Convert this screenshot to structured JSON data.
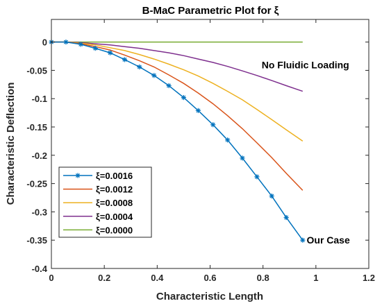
{
  "chart_data": {
    "type": "line",
    "title": "B-MaC Parametric Plot for ξ",
    "xlabel": "Characteristic Length",
    "ylabel": "Characteristic Deflection",
    "xlim": [
      0,
      1.2
    ],
    "ylim": [
      -0.4,
      0.04
    ],
    "xticks": [
      0,
      0.2,
      0.4,
      0.6,
      0.8,
      1,
      1.2
    ],
    "xtick_labels": [
      "0",
      "0.2",
      "0.4",
      "0.6",
      "0.8",
      "1",
      "1.2"
    ],
    "yticks": [
      0,
      -0.05,
      -0.1,
      -0.15,
      -0.2,
      -0.25,
      -0.3,
      -0.35,
      -0.4
    ],
    "ytick_labels": [
      "0",
      "-0.05",
      "-0.1",
      "-0.15",
      "-0.2",
      "-0.25",
      "-0.3",
      "-0.35",
      "-0.4"
    ],
    "grid": false,
    "legend_position": "bottom-left",
    "annotations": [
      {
        "text": "No Fluidic Loading",
        "x": 0.795,
        "y": -0.04
      },
      {
        "text": "Our Case",
        "x": 0.965,
        "y": -0.35
      }
    ],
    "series": [
      {
        "name": "ξ=0.0016",
        "color": "#0072BD",
        "marker": "asterisk",
        "x": [
          0,
          0.055,
          0.111,
          0.166,
          0.222,
          0.277,
          0.333,
          0.388,
          0.444,
          0.5,
          0.555,
          0.611,
          0.666,
          0.722,
          0.777,
          0.833,
          0.888,
          0.95
        ],
        "y": [
          0,
          0,
          -0.004,
          -0.011,
          -0.019,
          -0.031,
          -0.044,
          -0.059,
          -0.077,
          -0.098,
          -0.121,
          -0.146,
          -0.173,
          -0.205,
          -0.238,
          -0.272,
          -0.31,
          -0.35
        ]
      },
      {
        "name": "ξ=0.0012",
        "color": "#D95319",
        "x": [
          0,
          0.055,
          0.111,
          0.166,
          0.222,
          0.277,
          0.333,
          0.388,
          0.444,
          0.5,
          0.555,
          0.611,
          0.666,
          0.722,
          0.777,
          0.833,
          0.888,
          0.95
        ],
        "y": [
          0,
          0,
          -0.003,
          -0.008,
          -0.014,
          -0.023,
          -0.033,
          -0.044,
          -0.058,
          -0.073,
          -0.09,
          -0.109,
          -0.13,
          -0.153,
          -0.178,
          -0.204,
          -0.232,
          -0.262
        ]
      },
      {
        "name": "ξ=0.0008",
        "color": "#EDB120",
        "x": [
          0,
          0.055,
          0.111,
          0.166,
          0.222,
          0.277,
          0.333,
          0.388,
          0.444,
          0.5,
          0.555,
          0.611,
          0.666,
          0.722,
          0.777,
          0.833,
          0.888,
          0.95
        ],
        "y": [
          0,
          0,
          -0.002,
          -0.005,
          -0.01,
          -0.015,
          -0.022,
          -0.03,
          -0.039,
          -0.049,
          -0.06,
          -0.073,
          -0.087,
          -0.102,
          -0.119,
          -0.137,
          -0.155,
          -0.175
        ]
      },
      {
        "name": "ξ=0.0004",
        "color": "#7E2F8E",
        "x": [
          0,
          0.055,
          0.111,
          0.166,
          0.222,
          0.277,
          0.333,
          0.388,
          0.444,
          0.5,
          0.555,
          0.611,
          0.666,
          0.722,
          0.777,
          0.833,
          0.888,
          0.95
        ],
        "y": [
          0,
          0,
          -0.001,
          -0.003,
          -0.005,
          -0.008,
          -0.011,
          -0.015,
          -0.019,
          -0.024,
          -0.03,
          -0.036,
          -0.043,
          -0.051,
          -0.059,
          -0.068,
          -0.077,
          -0.087
        ]
      },
      {
        "name": "ξ=0.0000",
        "color": "#77AC30",
        "x": [
          0,
          0.95
        ],
        "y": [
          0,
          0
        ]
      }
    ]
  }
}
